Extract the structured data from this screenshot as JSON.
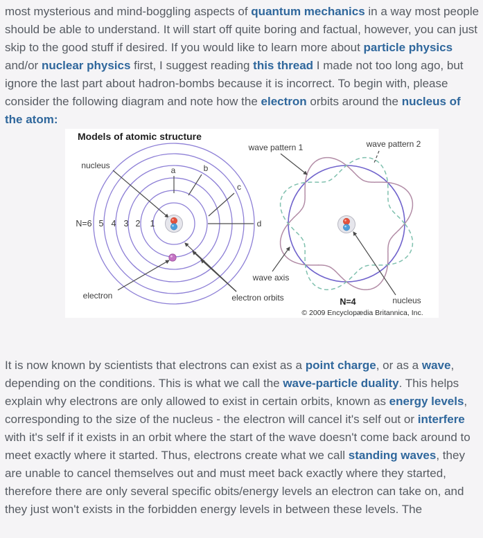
{
  "article": {
    "paragraphs": [
      {
        "name": "intro",
        "segments": [
          {
            "t": "most mysterious and mind-boggling aspects of "
          },
          {
            "t": "quantum mechanics",
            "link": true
          },
          {
            "t": " in a way most people should be able to understand. It will start off quite boring and factual, however, you can just skip to the good stuff if desired. If you would like to learn more about "
          },
          {
            "t": "particle physics",
            "link": true
          },
          {
            "t": " and/or "
          },
          {
            "t": "nuclear physics",
            "link": true
          },
          {
            "t": " first, I suggest reading "
          },
          {
            "t": "this thread",
            "link": true
          },
          {
            "t": " I made not too long ago, but ignore the last part about hadron-bombs because it is incorrect. To begin with, please consider the following diagram and note how the "
          },
          {
            "t": "electron",
            "link": true
          },
          {
            "t": " orbits around the "
          },
          {
            "t": "nucleus of the atom:",
            "link": true
          }
        ]
      },
      {
        "name": "body",
        "segments": [
          {
            "t": "It is now known by scientists that electrons can exist as a "
          },
          {
            "t": "point charge",
            "link": true
          },
          {
            "t": ", or as a "
          },
          {
            "t": "wave",
            "link": true
          },
          {
            "t": ", depending on the conditions. This is what we call the "
          },
          {
            "t": "wave-particle duality",
            "link": true
          },
          {
            "t": ". This helps explain why electrons are only allowed to exist in certain orbits, known as "
          },
          {
            "t": "energy levels",
            "link": true
          },
          {
            "t": ", corresponding to the size of the nucleus - the electron will cancel it's self out or "
          },
          {
            "t": "interfere",
            "link": true
          },
          {
            "t": " with it's self if it exists in an orbit where the start of the wave doesn't come back around to meet exactly where it started. Thus, electrons create what we call "
          },
          {
            "t": "standing waves",
            "link": true
          },
          {
            "t": ", they are unable to cancel themselves out and must meet back exactly where they started, therefore there are only several specific obits/energy levels an electron can take on, and they just won't exists in the forbidden energy levels in between these levels. The"
          }
        ]
      }
    ]
  },
  "diagram": {
    "title": "Models of atomic structure",
    "credit": "© 2009 Encyclopædia Britannica, Inc.",
    "bohr": {
      "shell_labels": [
        "N=6",
        "5",
        "4",
        "3",
        "2",
        "1"
      ],
      "orbit_ticks": [
        "a",
        "b",
        "c",
        "d"
      ],
      "nucleus_label": "nucleus",
      "electron_label": "electron",
      "orbits_label": "electron orbits"
    },
    "wave": {
      "pattern1_label": "wave pattern 1",
      "pattern2_label": "wave pattern 2",
      "axis_label": "wave axis",
      "n_label": "N=4",
      "nucleus_label": "nucleus",
      "wavelengths": 4
    }
  },
  "colors": {
    "page_background": "#f5f4f6",
    "figure_background": "#ffffff",
    "body_text": "#565b62",
    "link_text": "#2f679c",
    "orbit_stroke": "#8d7fd6",
    "wave_axis_stroke": "#7063cc",
    "wave_pattern1_stroke": "#b28ca6",
    "wave_pattern2_stroke": "#7fc0ae",
    "proton_red": "#e4523c",
    "neutron_blue": "#4d9edb",
    "electron_dot": "#c574c5"
  }
}
